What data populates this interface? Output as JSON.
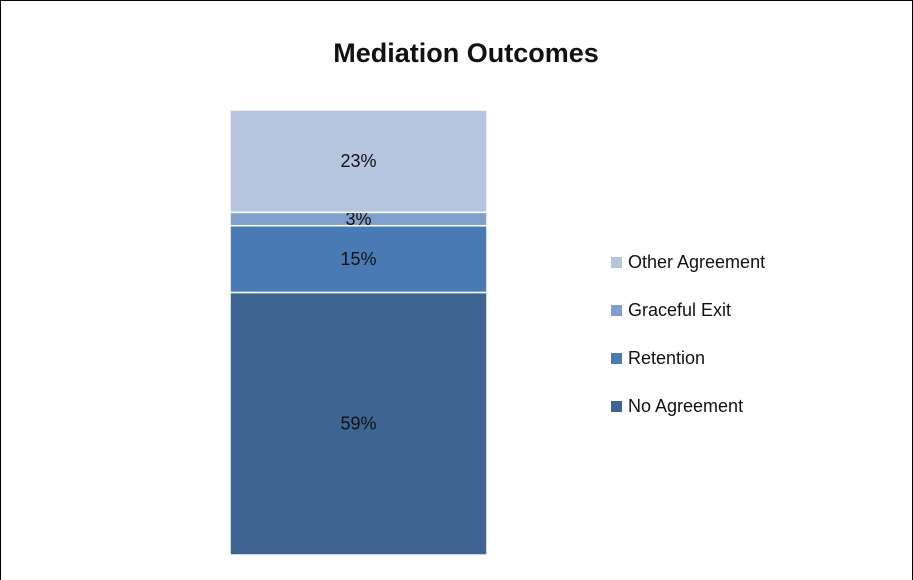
{
  "chart_data": {
    "type": "stacked_bar",
    "title": "Mediation Outcomes",
    "categories": [
      null
    ],
    "series": [
      {
        "name": "No Agreement",
        "color": "#3e6494",
        "values": [
          59
        ],
        "value_labels": [
          "59%"
        ]
      },
      {
        "name": "Retention",
        "color": "#4a7ab4",
        "values": [
          15
        ],
        "value_labels": [
          "15%"
        ]
      },
      {
        "name": "Graceful Exit",
        "color": "#7f9fcc",
        "values": [
          3
        ],
        "value_labels": [
          "3%"
        ]
      },
      {
        "name": "Other Agreement",
        "color": "#b5c5df",
        "values": [
          23
        ],
        "value_labels": [
          "23%"
        ]
      }
    ],
    "legend": "right"
  }
}
